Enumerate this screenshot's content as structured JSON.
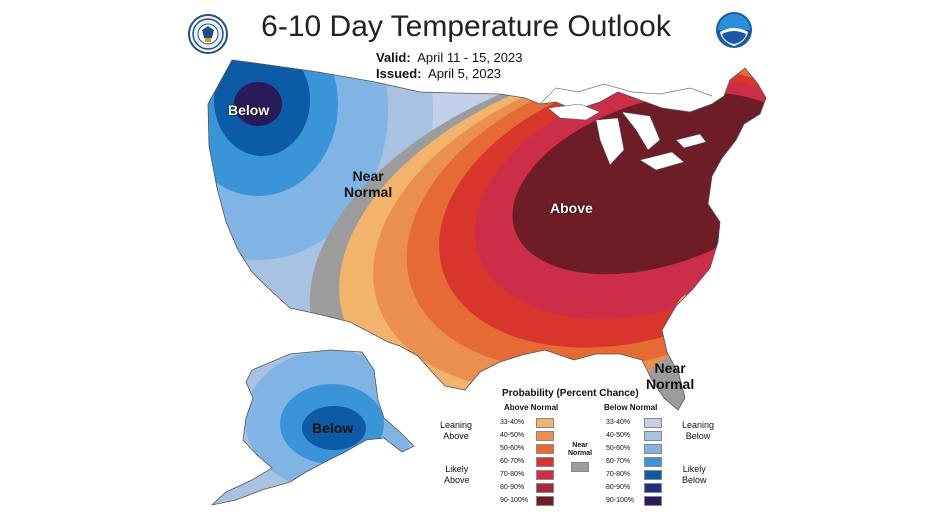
{
  "header": {
    "title": "6-10 Day Temperature Outlook",
    "valid_label": "Valid:",
    "valid_value": "April 11 - 15, 2023",
    "issued_label": "Issued:",
    "issued_value": "April 5, 2023"
  },
  "logos": {
    "left_icon": "doc-seal-icon",
    "right_icon": "noaa-logo-icon"
  },
  "map_labels": {
    "below_nw": "Below",
    "near_normal_west_1": "Near",
    "near_normal_west_2": "Normal",
    "above": "Above",
    "near_normal_fl_1": "Near",
    "near_normal_fl_2": "Normal",
    "below_ak": "Below"
  },
  "legend": {
    "title": "Probability (Percent Chance)",
    "above_header": "Above Normal",
    "below_header": "Below Normal",
    "leaning_above_1": "Leaning",
    "leaning_above_2": "Above",
    "likely_above_1": "Likely",
    "likely_above_2": "Above",
    "leaning_below_1": "Leaning",
    "leaning_below_2": "Below",
    "likely_below_1": "Likely",
    "likely_below_2": "Below",
    "near_normal_1": "Near",
    "near_normal_2": "Normal",
    "above_ranges": [
      "33-40%",
      "40-50%",
      "50-60%",
      "60-70%",
      "70-80%",
      "80-90%",
      "90-100%"
    ],
    "below_ranges": [
      "33-40%",
      "40-50%",
      "50-60%",
      "60-70%",
      "70-80%",
      "80-90%",
      "90-100%"
    ],
    "above_colors": [
      "#f2b46c",
      "#eb8f4e",
      "#e56a34",
      "#d8362c",
      "#cc2e4a",
      "#9e2c3c",
      "#6e1c26"
    ],
    "below_colors": [
      "#c4cfea",
      "#a8c2e2",
      "#7fb4e4",
      "#3a94d8",
      "#0c5ba6",
      "#1f2f7a",
      "#2a1a5a"
    ],
    "near_color": "#9c9c9c"
  }
}
